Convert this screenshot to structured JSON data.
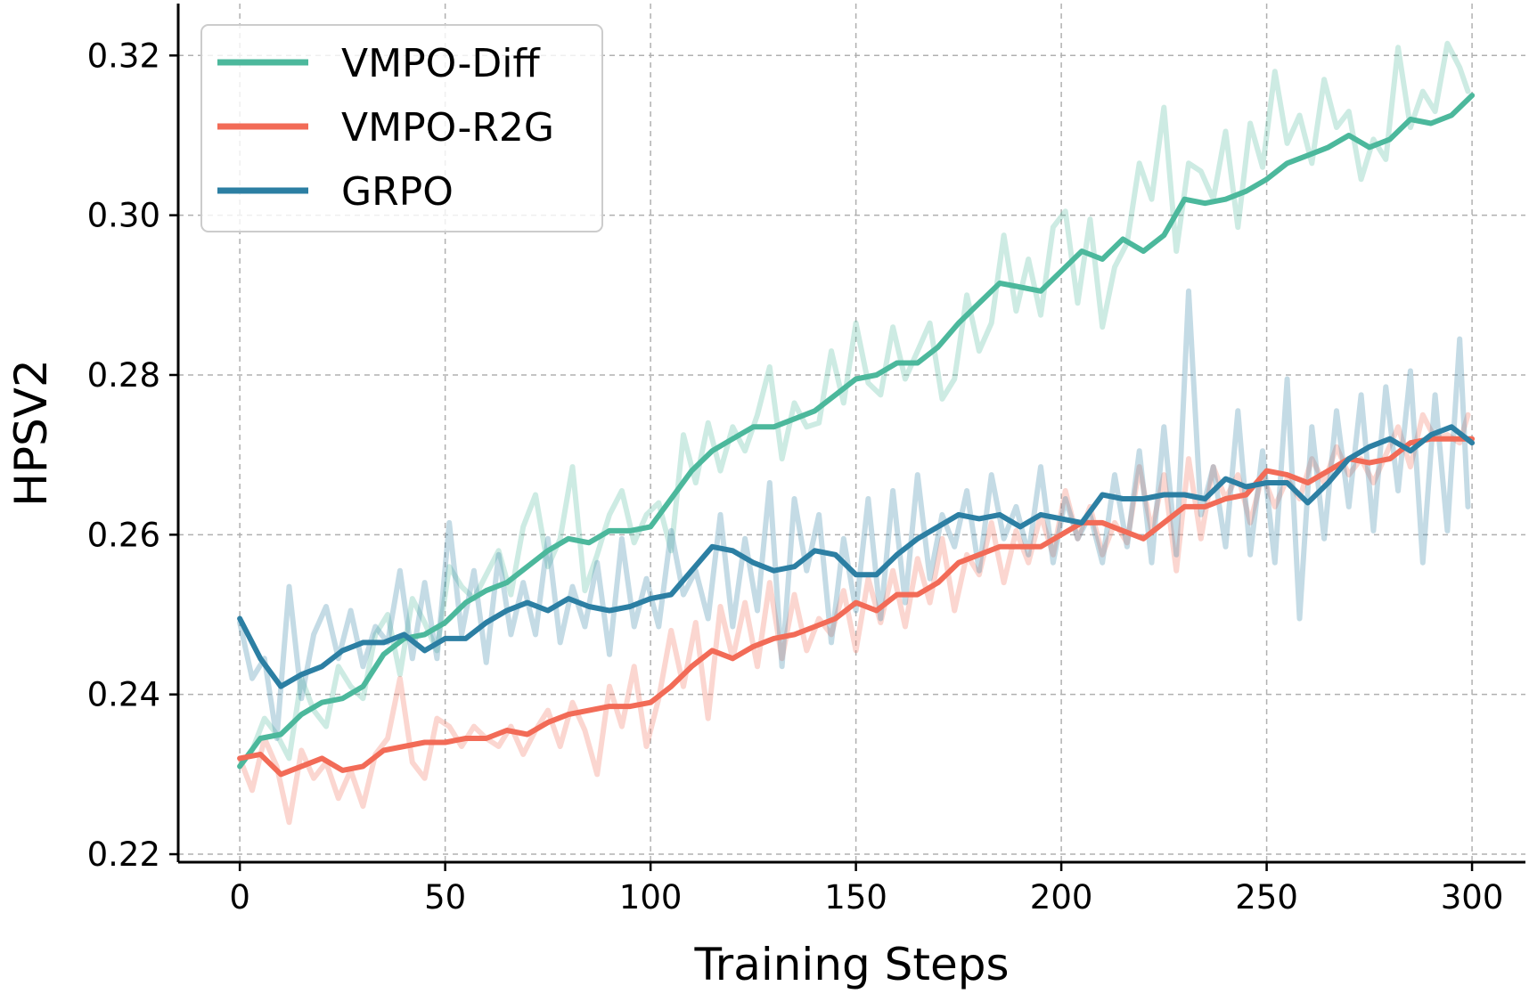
{
  "chart_data": {
    "type": "line",
    "title": "",
    "xlabel": "Training Steps",
    "ylabel": "HPSV2",
    "xlim": [
      -15,
      313
    ],
    "ylim": [
      0.219,
      0.3265
    ],
    "xticks": [
      0,
      50,
      100,
      150,
      200,
      250,
      300
    ],
    "xtick_labels": [
      "0",
      "50",
      "100",
      "150",
      "200",
      "250",
      "300"
    ],
    "yticks": [
      0.22,
      0.24,
      0.26,
      0.28,
      0.3,
      0.32
    ],
    "ytick_labels": [
      "0.22",
      "0.24",
      "0.26",
      "0.28",
      "0.30",
      "0.32"
    ],
    "grid": true,
    "legend_position": "top-left",
    "series": [
      {
        "name": "VMPO-Diff",
        "color": "#4cb89c",
        "smoothed": {
          "x": [
            0,
            5,
            10,
            15,
            20,
            25,
            30,
            35,
            40,
            45,
            50,
            55,
            60,
            65,
            70,
            75,
            80,
            85,
            90,
            95,
            100,
            105,
            110,
            115,
            120,
            125,
            130,
            135,
            140,
            145,
            150,
            155,
            160,
            165,
            170,
            175,
            180,
            185,
            190,
            195,
            200,
            205,
            210,
            215,
            220,
            225,
            230,
            235,
            240,
            245,
            250,
            255,
            260,
            265,
            270,
            275,
            280,
            285,
            290,
            295,
            300
          ],
          "y": [
            0.231,
            0.2345,
            0.235,
            0.2375,
            0.239,
            0.2395,
            0.241,
            0.245,
            0.247,
            0.2475,
            0.249,
            0.2515,
            0.253,
            0.254,
            0.256,
            0.258,
            0.2595,
            0.259,
            0.2605,
            0.2605,
            0.261,
            0.2645,
            0.268,
            0.2705,
            0.272,
            0.2735,
            0.2735,
            0.2745,
            0.2755,
            0.2775,
            0.2795,
            0.28,
            0.2815,
            0.2815,
            0.2835,
            0.2865,
            0.289,
            0.2915,
            0.291,
            0.2905,
            0.293,
            0.2955,
            0.2945,
            0.297,
            0.2955,
            0.2975,
            0.302,
            0.3015,
            0.302,
            0.303,
            0.3045,
            0.3065,
            0.3075,
            0.3085,
            0.31,
            0.3085,
            0.3095,
            0.312,
            0.3115,
            0.3125,
            0.315
          ]
        },
        "raw": {
          "x": [
            0,
            3,
            6,
            9,
            12,
            15,
            18,
            21,
            24,
            27,
            30,
            33,
            36,
            39,
            42,
            45,
            48,
            51,
            54,
            57,
            60,
            63,
            66,
            69,
            72,
            75,
            78,
            81,
            84,
            87,
            90,
            93,
            96,
            99,
            102,
            105,
            108,
            111,
            114,
            117,
            120,
            123,
            126,
            129,
            132,
            135,
            138,
            141,
            144,
            147,
            150,
            153,
            156,
            159,
            162,
            165,
            168,
            171,
            174,
            177,
            180,
            183,
            186,
            189,
            192,
            195,
            198,
            201,
            204,
            207,
            210,
            213,
            216,
            219,
            222,
            225,
            228,
            231,
            234,
            237,
            240,
            243,
            246,
            249,
            252,
            255,
            258,
            261,
            264,
            267,
            270,
            273,
            276,
            279,
            282,
            285,
            288,
            291,
            294,
            297,
            299
          ],
          "y": [
            0.231,
            0.233,
            0.237,
            0.235,
            0.232,
            0.242,
            0.238,
            0.236,
            0.2435,
            0.241,
            0.2395,
            0.2475,
            0.25,
            0.2425,
            0.252,
            0.249,
            0.2455,
            0.256,
            0.2535,
            0.252,
            0.255,
            0.258,
            0.2525,
            0.261,
            0.265,
            0.256,
            0.2595,
            0.2685,
            0.253,
            0.2575,
            0.2625,
            0.2655,
            0.259,
            0.2625,
            0.264,
            0.258,
            0.2725,
            0.2665,
            0.274,
            0.268,
            0.2735,
            0.2705,
            0.275,
            0.281,
            0.2695,
            0.2765,
            0.2735,
            0.274,
            0.283,
            0.2765,
            0.2865,
            0.279,
            0.2775,
            0.286,
            0.2795,
            0.283,
            0.2865,
            0.277,
            0.2795,
            0.29,
            0.283,
            0.2865,
            0.2975,
            0.288,
            0.2945,
            0.2875,
            0.2985,
            0.3005,
            0.289,
            0.2995,
            0.286,
            0.2935,
            0.2965,
            0.3065,
            0.302,
            0.3135,
            0.2955,
            0.3065,
            0.3055,
            0.302,
            0.3105,
            0.2985,
            0.3115,
            0.306,
            0.318,
            0.309,
            0.3125,
            0.3065,
            0.317,
            0.311,
            0.313,
            0.3045,
            0.3095,
            0.307,
            0.321,
            0.311,
            0.3155,
            0.313,
            0.3215,
            0.3185,
            0.3155
          ]
        }
      },
      {
        "name": "VMPO-R2G",
        "color": "#f26b57",
        "smoothed": {
          "x": [
            0,
            5,
            10,
            15,
            20,
            25,
            30,
            35,
            40,
            45,
            50,
            55,
            60,
            65,
            70,
            75,
            80,
            85,
            90,
            95,
            100,
            105,
            110,
            115,
            120,
            125,
            130,
            135,
            140,
            145,
            150,
            155,
            160,
            165,
            170,
            175,
            180,
            185,
            190,
            195,
            200,
            205,
            210,
            215,
            220,
            225,
            230,
            235,
            240,
            245,
            250,
            255,
            260,
            265,
            270,
            275,
            280,
            285,
            290,
            295,
            300
          ],
          "y": [
            0.232,
            0.2325,
            0.23,
            0.231,
            0.232,
            0.2305,
            0.231,
            0.233,
            0.2335,
            0.234,
            0.234,
            0.2345,
            0.2345,
            0.2355,
            0.235,
            0.2365,
            0.2375,
            0.238,
            0.2385,
            0.2385,
            0.239,
            0.241,
            0.2435,
            0.2455,
            0.2445,
            0.246,
            0.247,
            0.2475,
            0.2485,
            0.2495,
            0.2515,
            0.2505,
            0.2525,
            0.2525,
            0.254,
            0.2565,
            0.2575,
            0.2585,
            0.2585,
            0.2585,
            0.26,
            0.2615,
            0.2615,
            0.2605,
            0.2595,
            0.2615,
            0.2635,
            0.2635,
            0.2645,
            0.265,
            0.268,
            0.2675,
            0.2665,
            0.268,
            0.2695,
            0.269,
            0.2695,
            0.2715,
            0.272,
            0.272,
            0.272
          ]
        },
        "raw": {
          "x": [
            0,
            3,
            6,
            9,
            12,
            15,
            18,
            21,
            24,
            27,
            30,
            33,
            36,
            39,
            42,
            45,
            48,
            51,
            54,
            57,
            60,
            63,
            66,
            69,
            72,
            75,
            78,
            81,
            84,
            87,
            90,
            93,
            96,
            99,
            102,
            105,
            108,
            111,
            114,
            117,
            120,
            123,
            126,
            129,
            132,
            135,
            138,
            141,
            144,
            147,
            150,
            153,
            156,
            159,
            162,
            165,
            168,
            171,
            174,
            177,
            180,
            183,
            186,
            189,
            192,
            195,
            198,
            201,
            204,
            207,
            210,
            213,
            216,
            219,
            222,
            225,
            228,
            231,
            234,
            237,
            240,
            243,
            246,
            249,
            252,
            255,
            258,
            261,
            264,
            267,
            270,
            273,
            276,
            279,
            282,
            285,
            288,
            291,
            294,
            297,
            299
          ],
          "y": [
            0.232,
            0.228,
            0.2345,
            0.231,
            0.224,
            0.233,
            0.2295,
            0.2315,
            0.227,
            0.2305,
            0.226,
            0.2325,
            0.2345,
            0.242,
            0.2315,
            0.2295,
            0.237,
            0.236,
            0.2335,
            0.236,
            0.2345,
            0.2335,
            0.236,
            0.2325,
            0.2355,
            0.238,
            0.2335,
            0.239,
            0.2355,
            0.23,
            0.241,
            0.236,
            0.2435,
            0.2335,
            0.2395,
            0.248,
            0.241,
            0.249,
            0.237,
            0.251,
            0.2445,
            0.2515,
            0.2435,
            0.254,
            0.2445,
            0.2525,
            0.2455,
            0.2495,
            0.2475,
            0.253,
            0.2455,
            0.2545,
            0.249,
            0.2555,
            0.2485,
            0.257,
            0.2515,
            0.2595,
            0.2505,
            0.2575,
            0.255,
            0.2615,
            0.254,
            0.2605,
            0.2565,
            0.2625,
            0.2575,
            0.2655,
            0.2595,
            0.2635,
            0.2575,
            0.2615,
            0.259,
            0.2685,
            0.2605,
            0.2675,
            0.2555,
            0.2695,
            0.2595,
            0.2685,
            0.2645,
            0.2675,
            0.2615,
            0.2675,
            0.2635,
            0.267,
            0.2645,
            0.2695,
            0.2665,
            0.271,
            0.2675,
            0.2695,
            0.2665,
            0.27,
            0.2735,
            0.2685,
            0.275,
            0.272,
            0.2725,
            0.2715,
            0.275
          ]
        }
      },
      {
        "name": "GRPO",
        "color": "#2c7fa3",
        "smoothed": {
          "x": [
            0,
            5,
            10,
            15,
            20,
            25,
            30,
            35,
            40,
            45,
            50,
            55,
            60,
            65,
            70,
            75,
            80,
            85,
            90,
            95,
            100,
            105,
            110,
            115,
            120,
            125,
            130,
            135,
            140,
            145,
            150,
            155,
            160,
            165,
            170,
            175,
            180,
            185,
            190,
            195,
            200,
            205,
            210,
            215,
            220,
            225,
            230,
            235,
            240,
            245,
            250,
            255,
            260,
            265,
            270,
            275,
            280,
            285,
            290,
            295,
            300
          ],
          "y": [
            0.2495,
            0.2445,
            0.241,
            0.2425,
            0.2435,
            0.2455,
            0.2465,
            0.2465,
            0.2475,
            0.2455,
            0.247,
            0.247,
            0.249,
            0.2505,
            0.2515,
            0.2505,
            0.252,
            0.251,
            0.2505,
            0.251,
            0.252,
            0.2525,
            0.2555,
            0.2585,
            0.258,
            0.2565,
            0.2555,
            0.256,
            0.258,
            0.2575,
            0.255,
            0.255,
            0.2575,
            0.2595,
            0.261,
            0.2625,
            0.262,
            0.2625,
            0.261,
            0.2625,
            0.262,
            0.2615,
            0.265,
            0.2645,
            0.2645,
            0.265,
            0.265,
            0.2645,
            0.267,
            0.266,
            0.2665,
            0.2665,
            0.264,
            0.2665,
            0.2695,
            0.271,
            0.272,
            0.2705,
            0.2725,
            0.2735,
            0.2715
          ]
        },
        "raw": {
          "x": [
            0,
            3,
            6,
            9,
            12,
            15,
            18,
            21,
            24,
            27,
            30,
            33,
            36,
            39,
            42,
            45,
            48,
            51,
            54,
            57,
            60,
            63,
            66,
            69,
            72,
            75,
            78,
            81,
            84,
            87,
            90,
            93,
            96,
            99,
            102,
            105,
            108,
            111,
            114,
            117,
            120,
            123,
            126,
            129,
            132,
            135,
            138,
            141,
            144,
            147,
            150,
            153,
            156,
            159,
            162,
            165,
            168,
            171,
            174,
            177,
            180,
            183,
            186,
            189,
            192,
            195,
            198,
            201,
            204,
            207,
            210,
            213,
            216,
            219,
            222,
            225,
            228,
            231,
            234,
            237,
            240,
            243,
            246,
            249,
            252,
            255,
            258,
            261,
            264,
            267,
            270,
            273,
            276,
            279,
            282,
            285,
            288,
            291,
            294,
            297,
            299
          ],
          "y": [
            0.249,
            0.242,
            0.2445,
            0.2345,
            0.2535,
            0.2395,
            0.2475,
            0.251,
            0.2445,
            0.2505,
            0.2435,
            0.2485,
            0.2465,
            0.2555,
            0.2445,
            0.254,
            0.2445,
            0.2615,
            0.2475,
            0.2555,
            0.244,
            0.2575,
            0.2475,
            0.254,
            0.2475,
            0.2595,
            0.2465,
            0.2535,
            0.2485,
            0.2565,
            0.245,
            0.2595,
            0.2485,
            0.2545,
            0.2485,
            0.2605,
            0.2525,
            0.2555,
            0.2495,
            0.2625,
            0.2485,
            0.2595,
            0.2505,
            0.2665,
            0.2435,
            0.2645,
            0.2555,
            0.2625,
            0.2465,
            0.2595,
            0.2505,
            0.2645,
            0.2495,
            0.2655,
            0.2515,
            0.2675,
            0.2545,
            0.2625,
            0.2585,
            0.2655,
            0.2555,
            0.2675,
            0.2595,
            0.2635,
            0.2575,
            0.2685,
            0.2565,
            0.2645,
            0.2595,
            0.2625,
            0.2565,
            0.2675,
            0.2585,
            0.2705,
            0.2565,
            0.2735,
            0.2575,
            0.2905,
            0.2625,
            0.2685,
            0.2585,
            0.2755,
            0.2575,
            0.2705,
            0.2565,
            0.2795,
            0.2495,
            0.2735,
            0.2595,
            0.2755,
            0.2635,
            0.2775,
            0.2605,
            0.2785,
            0.2655,
            0.2805,
            0.2565,
            0.2775,
            0.2605,
            0.2845,
            0.2635
          ]
        }
      }
    ]
  }
}
